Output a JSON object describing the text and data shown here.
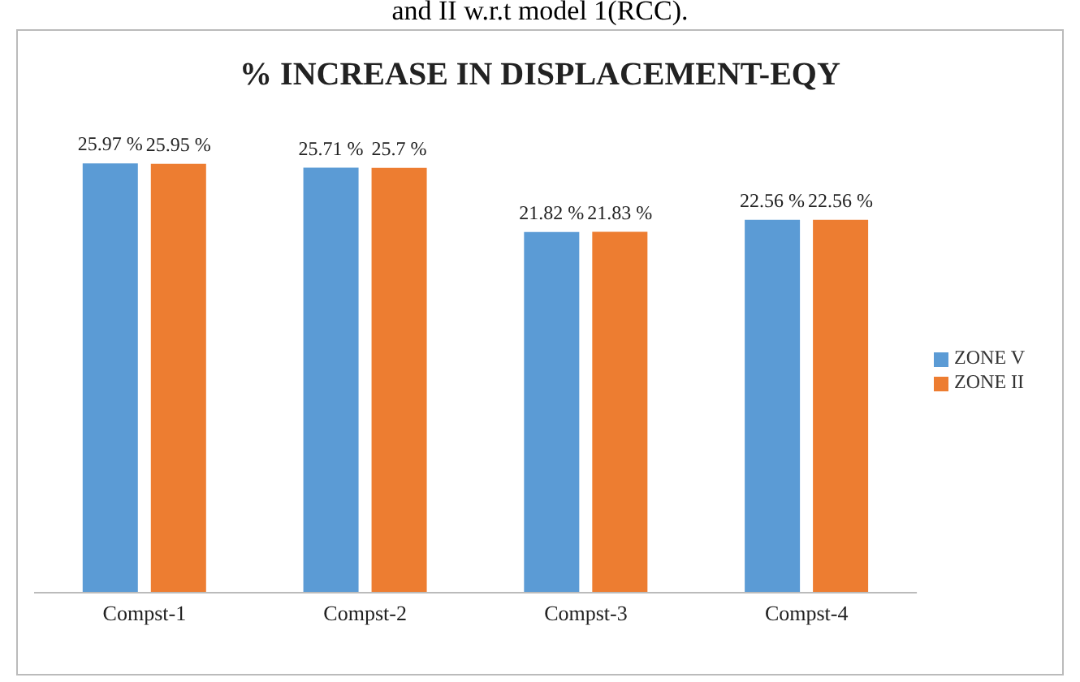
{
  "chart_data": {
    "type": "bar",
    "title": "% INCREASE IN DISPLACEMENT-EQY",
    "annotations": [
      "and II w.r.t model 1(RCC)."
    ],
    "categories": [
      "Compst-1",
      "Compst-2",
      "Compst-3",
      "Compst-4"
    ],
    "series": [
      {
        "name": "ZONE V",
        "color": "#5b9bd5",
        "values": [
          25.97,
          25.71,
          21.82,
          22.56
        ],
        "value_labels": [
          "25.97 %",
          "25.71 %",
          "21.82 %",
          "22.56 %"
        ]
      },
      {
        "name": "ZONE II",
        "color": "#ed7d31",
        "values": [
          25.95,
          25.7,
          21.83,
          22.56
        ],
        "value_labels": [
          "25.95 %",
          "25.7 %",
          "21.83 %",
          "22.56 %"
        ]
      }
    ],
    "tick_labels": "x",
    "legend": "right",
    "grid": false
  }
}
